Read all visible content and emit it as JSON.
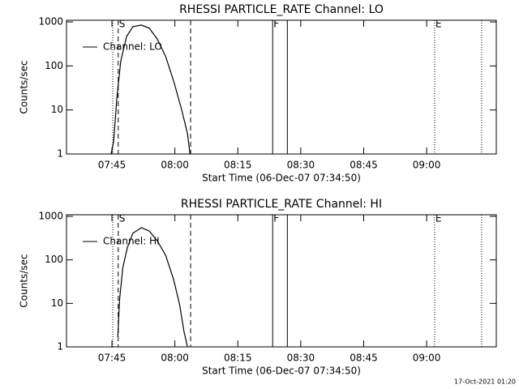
{
  "chart_data": [
    {
      "type": "line",
      "title": "RHESSI PARTICLE_RATE Channel: LO",
      "xlabel": "Start Time (06-Dec-07 07:34:50)",
      "ylabel": "Counts/sec",
      "log_y": true,
      "xlim": [
        454.17,
        556.6
      ],
      "ylim": [
        1,
        1090
      ],
      "xticks": [
        {
          "value": 465,
          "label": "07:45"
        },
        {
          "value": 480,
          "label": "08:00"
        },
        {
          "value": 495,
          "label": "08:15"
        },
        {
          "value": 510,
          "label": "08:30"
        },
        {
          "value": 525,
          "label": "08:45"
        },
        {
          "value": 540,
          "label": "09:00"
        }
      ],
      "yticks": [
        1,
        10,
        100,
        1000
      ],
      "series": [
        {
          "name": "Channel: LO",
          "color": "#000000",
          "x": [
            464.8,
            465.4,
            466.2,
            467.1,
            468.5,
            470.0,
            472.0,
            473.9,
            475.8,
            477.8,
            479.7,
            481.6,
            483.0,
            483.6
          ],
          "values": [
            1,
            1.9,
            19.4,
            130,
            467,
            780,
            850,
            720,
            410,
            163,
            45.5,
            10.3,
            2.9,
            1
          ]
        }
      ],
      "markers": [
        {
          "x": 465.2,
          "style": "dotted"
        },
        {
          "x": 466.5,
          "style": "dashed"
        },
        {
          "x": 483.75,
          "style": "dashed"
        },
        {
          "x": 503.3,
          "style": "solid"
        },
        {
          "x": 506.8,
          "style": "solid"
        },
        {
          "x": 541.9,
          "style": "dotted"
        },
        {
          "x": 553.1,
          "style": "dotted"
        }
      ],
      "marker_labels": [
        {
          "x": 466.5,
          "text": "S"
        },
        {
          "x": 503.3,
          "text": "F"
        },
        {
          "x": 541.9,
          "text": "E"
        }
      ]
    },
    {
      "type": "line",
      "title": "RHESSI PARTICLE_RATE Channel: HI",
      "xlabel": "Start Time (06-Dec-07 07:34:50)",
      "ylabel": "Counts/sec",
      "log_y": true,
      "xlim": [
        454.17,
        556.6
      ],
      "ylim": [
        1,
        1090
      ],
      "xticks": [
        {
          "value": 465,
          "label": "07:45"
        },
        {
          "value": 480,
          "label": "08:00"
        },
        {
          "value": 495,
          "label": "08:15"
        },
        {
          "value": 510,
          "label": "08:30"
        },
        {
          "value": 525,
          "label": "08:45"
        },
        {
          "value": 540,
          "label": "09:00"
        }
      ],
      "yticks": [
        1,
        10,
        100,
        1000
      ],
      "series": [
        {
          "name": "Channel: HI",
          "color": "#000000",
          "x": [
            466.4,
            466.8,
            467.6,
            468.7,
            470.0,
            472.0,
            473.9,
            475.8,
            477.8,
            479.7,
            481.1,
            482.2,
            483.0
          ],
          "values": [
            1.7,
            12,
            67,
            196,
            409,
            550,
            460,
            275,
            127,
            35,
            9.7,
            2.2,
            1
          ]
        }
      ],
      "markers": [
        {
          "x": 465.2,
          "style": "dotted"
        },
        {
          "x": 466.5,
          "style": "dashed"
        },
        {
          "x": 483.75,
          "style": "dashed"
        },
        {
          "x": 503.3,
          "style": "solid"
        },
        {
          "x": 506.8,
          "style": "solid"
        },
        {
          "x": 541.9,
          "style": "dotted"
        },
        {
          "x": 553.1,
          "style": "dotted"
        }
      ],
      "marker_labels": [
        {
          "x": 466.5,
          "text": "S"
        },
        {
          "x": 503.3,
          "text": "F"
        },
        {
          "x": 541.9,
          "text": "E"
        }
      ]
    }
  ],
  "footer": "17-Oct-2021 01:20"
}
